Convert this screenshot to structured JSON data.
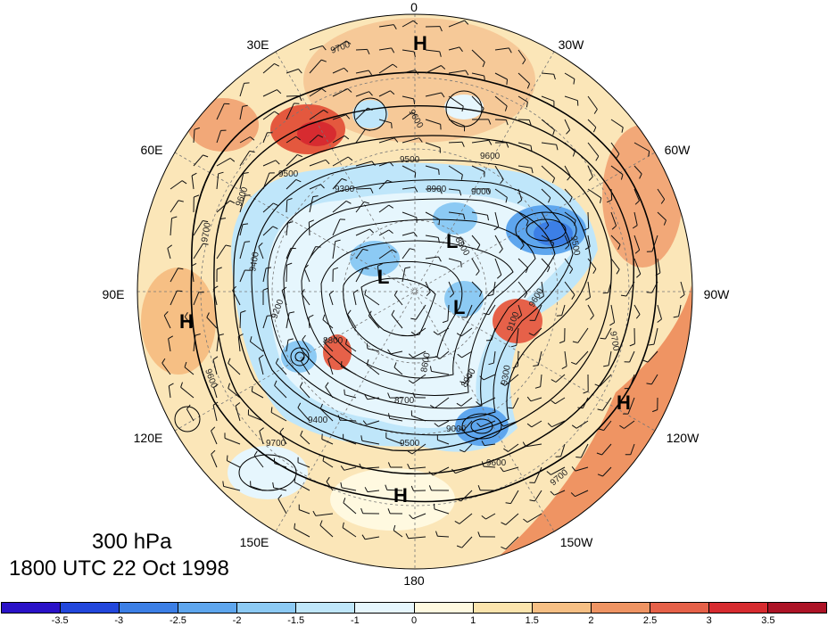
{
  "title": {
    "level": "300 hPa",
    "time": "1800 UTC 22 Oct 1998"
  },
  "longitude_labels": [
    {
      "key": "lon_0",
      "text": "0"
    },
    {
      "key": "lon_30w",
      "text": "30W"
    },
    {
      "key": "lon_60w",
      "text": "60W"
    },
    {
      "key": "lon_90w",
      "text": "90W"
    },
    {
      "key": "lon_120w",
      "text": "120W"
    },
    {
      "key": "lon_150w",
      "text": "150W"
    },
    {
      "key": "lon_180",
      "text": "180"
    },
    {
      "key": "lon_150e",
      "text": "150E"
    },
    {
      "key": "lon_120e",
      "text": "120E"
    },
    {
      "key": "lon_90e",
      "text": "90E"
    },
    {
      "key": "lon_60e",
      "text": "60E"
    },
    {
      "key": "lon_30e",
      "text": "30E"
    }
  ],
  "pressure_centers": [
    "H",
    "H",
    "H",
    "H",
    "L",
    "L",
    "L"
  ],
  "contour_labels": [
    "9700",
    "9600",
    "9500",
    "9300",
    "8900",
    "8800",
    "9000",
    "9400",
    "9200",
    "8700",
    "8600",
    "9100"
  ],
  "colorbar": {
    "ticks": [
      "-3.5",
      "-3",
      "-2.5",
      "-2",
      "-1.5",
      "-1",
      "0",
      "1",
      "1.5",
      "2",
      "2.5",
      "3",
      "3.5"
    ],
    "colors": [
      "#2a12c8",
      "#2247dc",
      "#3c7fe6",
      "#5ea6ee",
      "#8ccaf4",
      "#bfe6fa",
      "#e6f6fd",
      "#fff9e0",
      "#fbe4ad",
      "#f6bf84",
      "#ef9463",
      "#e66149",
      "#d72b30",
      "#ad1326"
    ]
  }
}
